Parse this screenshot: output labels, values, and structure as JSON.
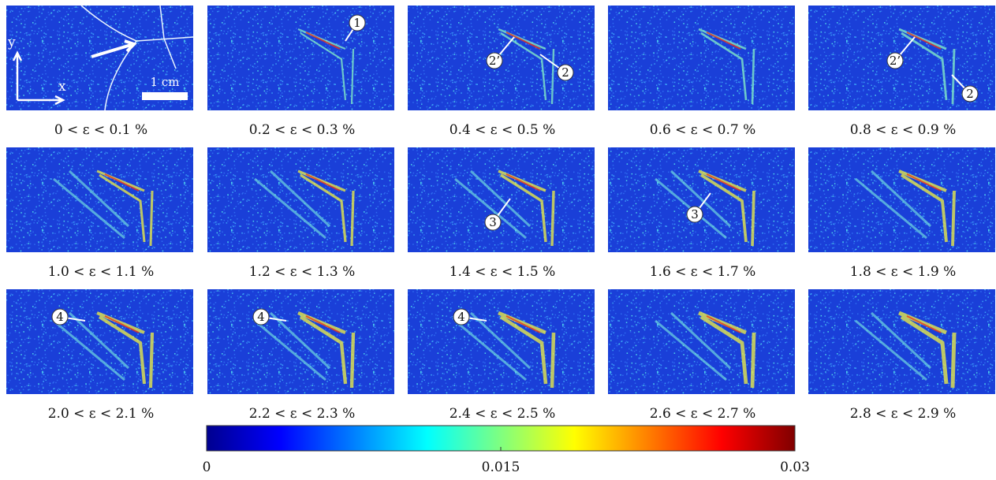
{
  "panels": [
    {
      "caption": "0 < ε < 0.1 %",
      "markers": []
    },
    {
      "caption": "0.2 < ε < 0.3 %",
      "markers": [
        "1"
      ]
    },
    {
      "caption": "0.4 < ε < 0.5 %",
      "markers": [
        "2’",
        "2"
      ]
    },
    {
      "caption": "0.6 < ε < 0.7 %",
      "markers": []
    },
    {
      "caption": "0.8 < ε < 0.9 %",
      "markers": [
        "2’",
        "2"
      ]
    },
    {
      "caption": "1.0 < ε < 1.1 %",
      "markers": []
    },
    {
      "caption": "1.2 < ε < 1.3 %",
      "markers": []
    },
    {
      "caption": "1.4 < ε < 1.5 %",
      "markers": [
        "3"
      ]
    },
    {
      "caption": "1.6 < ε < 1.7 %",
      "markers": [
        "3"
      ]
    },
    {
      "caption": "1.8 < ε < 1.9 %",
      "markers": []
    },
    {
      "caption": "2.0 < ε < 2.1 %",
      "markers": [
        "4"
      ]
    },
    {
      "caption": "2.2 < ε < 2.3 %",
      "markers": [
        "4"
      ]
    },
    {
      "caption": "2.4 < ε < 2.5 %",
      "markers": [
        "4"
      ]
    },
    {
      "caption": "2.6 < ε < 2.7 %",
      "markers": []
    },
    {
      "caption": "2.8 < ε < 2.9 %",
      "markers": []
    }
  ],
  "axis_labels": {
    "x": "x",
    "y": "y"
  },
  "scale_bar": "1 cm",
  "colorbar": {
    "range": [
      0,
      0.03
    ],
    "ticks": [
      0,
      0.015,
      0.03
    ]
  }
}
